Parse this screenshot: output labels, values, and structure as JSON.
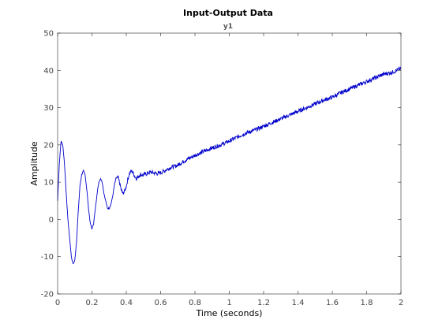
{
  "chart_data": {
    "type": "line",
    "title": "Input-Output Data",
    "subtitle": "y1",
    "xlabel": "Time (seconds)",
    "ylabel": "Amplitude",
    "xlim": [
      0,
      2
    ],
    "ylim": [
      -20,
      50
    ],
    "xticks": [
      0,
      0.2,
      0.4,
      0.6,
      0.8,
      1,
      1.2,
      1.4,
      1.6,
      1.8,
      2
    ],
    "xtick_labels": [
      "0",
      "0.2",
      "0.4",
      "0.6",
      "0.8",
      "1",
      "1.2",
      "1.4",
      "1.6",
      "1.8",
      "2"
    ],
    "yticks": [
      -20,
      -10,
      0,
      10,
      20,
      30,
      40,
      50
    ],
    "ytick_labels": [
      "-20",
      "-10",
      "0",
      "10",
      "20",
      "30",
      "40",
      "50"
    ],
    "grid": false,
    "series": [
      {
        "color": "#0000cc",
        "x": [
          0,
          0.01,
          0.02,
          0.03,
          0.04,
          0.05,
          0.06,
          0.07,
          0.08,
          0.09,
          0.1,
          0.11,
          0.12,
          0.13,
          0.14,
          0.15,
          0.16,
          0.17,
          0.18,
          0.19,
          0.2,
          0.21,
          0.22,
          0.23,
          0.24,
          0.25,
          0.26,
          0.27,
          0.28,
          0.29,
          0.3,
          0.31,
          0.32,
          0.33,
          0.34,
          0.35,
          0.36,
          0.37,
          0.38,
          0.39,
          0.4,
          0.41,
          0.42,
          0.43,
          0.44,
          0.45,
          0.46,
          0.47,
          0.48,
          0.5,
          0.52,
          0.54,
          0.56,
          0.58,
          0.6,
          0.62,
          0.64,
          0.66,
          0.68,
          0.7,
          0.72,
          0.75,
          0.8,
          0.85,
          0.9,
          0.95,
          1.0,
          1.05,
          1.1,
          1.15,
          1.2,
          1.25,
          1.3,
          1.35,
          1.4,
          1.45,
          1.5,
          1.55,
          1.6,
          1.65,
          1.7,
          1.75,
          1.8,
          1.85,
          1.9,
          1.95,
          2.0
        ],
        "y": [
          5,
          15,
          21,
          20,
          15,
          7,
          0,
          -5,
          -10,
          -12,
          -11,
          -6,
          2,
          9,
          12,
          13,
          12,
          8,
          3,
          -1,
          -2.5,
          -1,
          3,
          7,
          10,
          11,
          10,
          7,
          5,
          3,
          3,
          4,
          6,
          9,
          11,
          11.5,
          10,
          8,
          7,
          7.5,
          9,
          11,
          12.5,
          13,
          12.5,
          11.5,
          11,
          11.5,
          12,
          12,
          12.3,
          12.7,
          12.5,
          12.3,
          12.5,
          13,
          13.5,
          14,
          14.2,
          14.6,
          15.2,
          16,
          17.2,
          18.2,
          19.2,
          20,
          21,
          22.2,
          23.2,
          24,
          25,
          26,
          27,
          28,
          29,
          30,
          31,
          32,
          32.8,
          34,
          35,
          36,
          37,
          38,
          39,
          39.5,
          40.5
        ]
      }
    ]
  }
}
